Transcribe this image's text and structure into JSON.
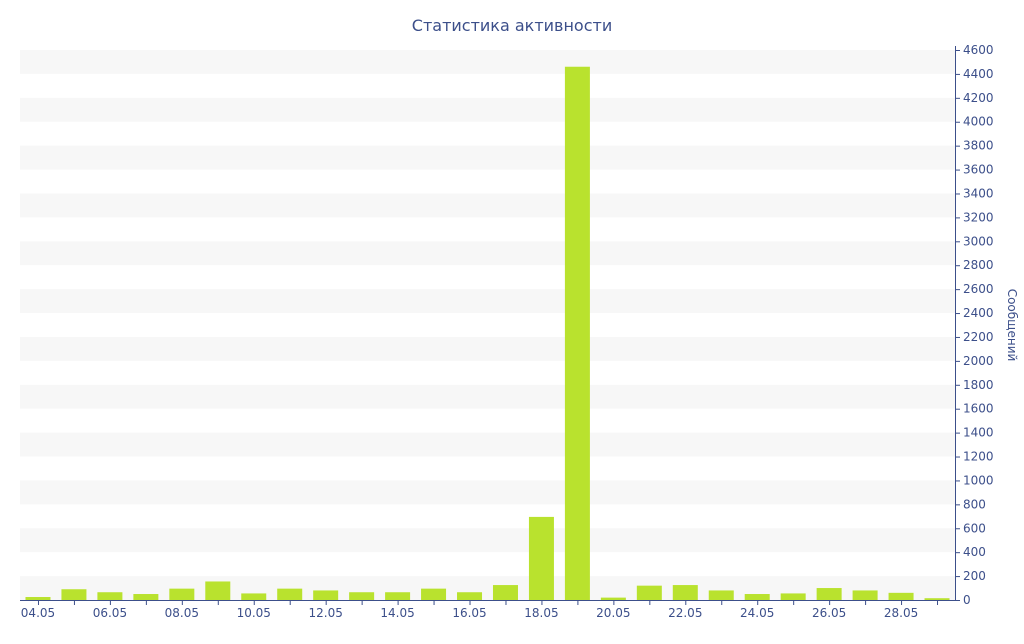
{
  "chart_data": {
    "type": "bar",
    "title": "Статистика активности",
    "xlabel": "",
    "ylabel": "Сообщений",
    "ylim": [
      0,
      4600
    ],
    "y_ticks": [
      0,
      200,
      400,
      600,
      800,
      1000,
      1200,
      1400,
      1600,
      1800,
      2000,
      2200,
      2400,
      2600,
      2800,
      3000,
      3200,
      3400,
      3600,
      3800,
      4000,
      4200,
      4400,
      4600
    ],
    "y_axis_position": "right",
    "grid": "alternating horizontal bands",
    "legend": "none",
    "categories": [
      "04.05",
      "05.05",
      "06.05",
      "07.05",
      "08.05",
      "09.05",
      "10.05",
      "11.05",
      "12.05",
      "13.05",
      "14.05",
      "15.05",
      "16.05",
      "17.05",
      "18.05",
      "19.05",
      "20.05",
      "21.05",
      "22.05",
      "23.05",
      "24.05",
      "25.05",
      "26.05",
      "27.05",
      "28.05",
      "29.05"
    ],
    "x_tick_labels": [
      "04.05",
      "06.05",
      "08.05",
      "10.05",
      "12.05",
      "14.05",
      "16.05",
      "18.05",
      "20.05",
      "22.05",
      "24.05",
      "26.05",
      "28.05"
    ],
    "values": [
      25,
      90,
      65,
      50,
      95,
      155,
      55,
      95,
      80,
      65,
      65,
      95,
      65,
      125,
      695,
      4460,
      20,
      120,
      125,
      80,
      50,
      55,
      100,
      80,
      60,
      15
    ]
  },
  "colors": {
    "bar": "#b9e22e",
    "band": "#f7f7f7",
    "text": "#3c4f8a",
    "axis": "#3c4f8a"
  }
}
